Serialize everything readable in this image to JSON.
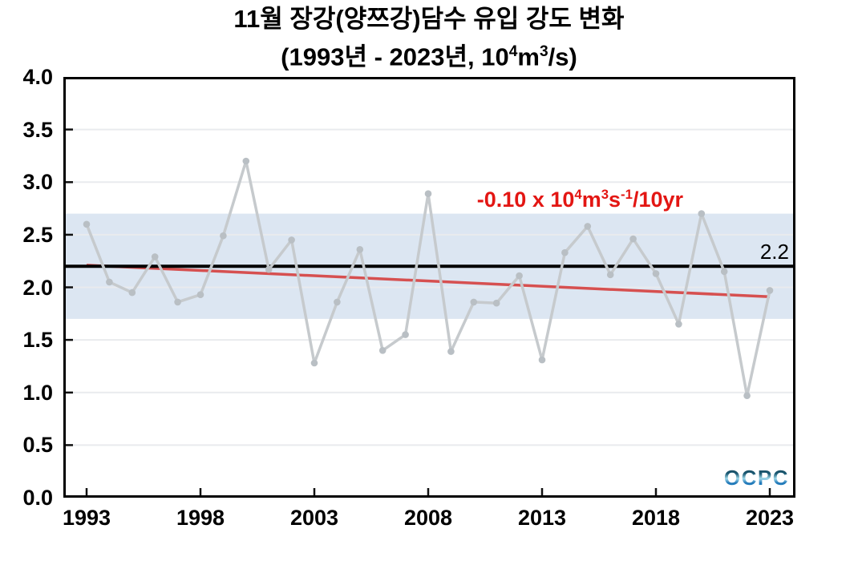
{
  "title": {
    "line1": "11월 장강(양쯔강)담수 유입 강도 변화",
    "line2": {
      "prefix": "(1993년 - 2023년, 10",
      "sup1": "4",
      "mid": "m",
      "sup2": "3",
      "suffix": "/s)"
    }
  },
  "annotation": {
    "prefix": "-0.10 x 10",
    "sup1": "4",
    "mid1": "m",
    "sup2": "3",
    "mid2": "s",
    "sup3": "-1",
    "suffix": "/10yr",
    "color": "#e31613"
  },
  "reference_label": "2.2",
  "logo": {
    "text": "OCPC"
  },
  "chart_data": {
    "type": "line",
    "title": "11월 장강(양쯔강)담수 유입 강도 변화 (1993년 - 2023년, 10^4 m^3/s)",
    "x": [
      1993,
      1994,
      1995,
      1996,
      1997,
      1998,
      1999,
      2000,
      2001,
      2002,
      2003,
      2004,
      2005,
      2006,
      2007,
      2008,
      2009,
      2010,
      2011,
      2012,
      2013,
      2014,
      2015,
      2016,
      2017,
      2018,
      2019,
      2020,
      2021,
      2022,
      2023
    ],
    "series": [
      {
        "name": "november-yangtze-freshwater-inflow-intensity",
        "values": [
          2.6,
          2.05,
          1.95,
          2.29,
          1.86,
          1.93,
          2.49,
          3.2,
          2.17,
          2.45,
          1.28,
          1.86,
          2.36,
          1.4,
          1.55,
          2.89,
          1.39,
          1.86,
          1.85,
          2.11,
          1.31,
          2.33,
          2.58,
          2.12,
          2.46,
          2.13,
          1.65,
          2.7,
          2.15,
          0.97,
          1.97
        ],
        "line_color": "#c6cacd",
        "marker_color": "#b9bfc4"
      }
    ],
    "xlabel": "",
    "ylabel": "",
    "ylim": [
      0.0,
      4.0
    ],
    "yticks": [
      "0.0",
      "0.5",
      "1.0",
      "1.5",
      "2.0",
      "2.5",
      "3.0",
      "3.5",
      "4.0"
    ],
    "xticks": [
      "1993",
      "1998",
      "2003",
      "2008",
      "2013",
      "2018",
      "2023"
    ],
    "grid": true,
    "grid_color": "#e9ebee",
    "band": {
      "low": 1.7,
      "high": 2.7,
      "color": "#dce6f2"
    },
    "reference_line": {
      "value": 2.2,
      "label": "2.2",
      "color": "#000000"
    },
    "trend_line": {
      "start_year": 1993,
      "start_value": 2.21,
      "end_year": 2023,
      "end_value": 1.91,
      "slope_label": "-0.10 x 10^4 m^3 s^-1 / 10yr",
      "color": "#d65050"
    },
    "legend": "none"
  }
}
